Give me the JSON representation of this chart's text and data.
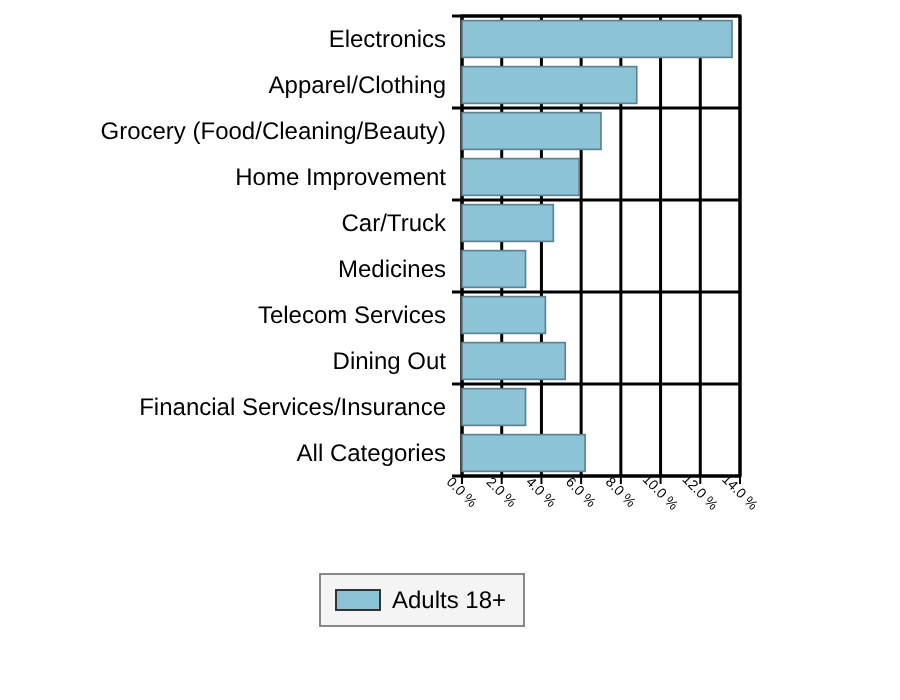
{
  "chart_data": {
    "type": "bar",
    "orientation": "horizontal",
    "categories": [
      "Electronics",
      "Apparel/Clothing",
      "Grocery (Food/Cleaning/Beauty)",
      "Home Improvement",
      "Car/Truck",
      "Medicines",
      "Telecom Services",
      "Dining Out",
      "Financial Services/Insurance",
      "All Categories"
    ],
    "series": [
      {
        "name": "Adults 18+",
        "color": "#8cc3d6",
        "values": [
          13.6,
          8.8,
          7.0,
          5.9,
          4.6,
          3.2,
          4.2,
          5.2,
          3.2,
          6.2
        ]
      }
    ],
    "xlim": [
      0,
      14
    ],
    "xticks": [
      {
        "value": 0,
        "label": "0.0 %"
      },
      {
        "value": 2,
        "label": "2.0 %"
      },
      {
        "value": 4,
        "label": "4.0 %"
      },
      {
        "value": 6,
        "label": "6.0 %"
      },
      {
        "value": 8,
        "label": "8.0 %"
      },
      {
        "value": 10,
        "label": "10.0 %"
      },
      {
        "value": 12,
        "label": "12.0 %"
      },
      {
        "value": 14,
        "label": "14.0 %"
      }
    ],
    "grid": true,
    "legend": "bottom"
  }
}
